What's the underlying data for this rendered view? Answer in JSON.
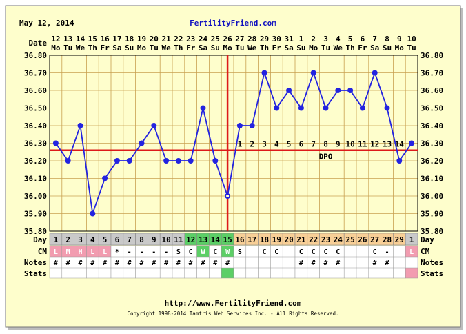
{
  "header": {
    "date": "May 12, 2014",
    "site": "FertilityFriend.com"
  },
  "footer": {
    "url": "http://www.FertilityFriend.com",
    "copyright": "Copyright 1998-2014 Tamtris Web Services Inc. - All Rights Reserved."
  },
  "labels": {
    "date": "Date",
    "day": "Day",
    "cm": "CM",
    "notes": "Notes",
    "stats": "Stats",
    "dpo": "DPO"
  },
  "colors": {
    "background": "#fefecc",
    "grid": "#c8a050",
    "line": "#2323e0",
    "coverline": "#dd1a1a",
    "cell_gray": "#c9c9c9",
    "cell_pink": "#f29cb0",
    "cell_green": "#5ccf66",
    "cell_green_light": "#8fdc8f",
    "cell_orange": "#f8cf96"
  },
  "chart_data": {
    "type": "line",
    "ylim": [
      35.8,
      36.8
    ],
    "yticks": [
      "35.80",
      "35.90",
      "36.00",
      "36.10",
      "36.20",
      "36.30",
      "36.40",
      "36.50",
      "36.60",
      "36.70",
      "36.80"
    ],
    "coverline": 36.26,
    "ovulation_cycle_day": 15,
    "dates": [
      "12",
      "13",
      "14",
      "15",
      "16",
      "17",
      "18",
      "19",
      "20",
      "21",
      "22",
      "23",
      "24",
      "25",
      "26",
      "27",
      "28",
      "29",
      "30",
      "31",
      "1",
      "2",
      "3",
      "4",
      "5",
      "6",
      "7",
      "8",
      "9",
      "10"
    ],
    "weekdays": [
      "Mo",
      "Tu",
      "We",
      "Th",
      "Fr",
      "Sa",
      "Su",
      "Mo",
      "Tu",
      "We",
      "Th",
      "Fr",
      "Sa",
      "Su",
      "Mo",
      "Tu",
      "We",
      "Th",
      "Fr",
      "Sa",
      "Su",
      "Mo",
      "Tu",
      "We",
      "Th",
      "Fr",
      "Sa",
      "Su",
      "Mo",
      "Tu"
    ],
    "cycle_days": [
      "1",
      "2",
      "3",
      "4",
      "5",
      "6",
      "7",
      "8",
      "9",
      "10",
      "11",
      "12",
      "13",
      "14",
      "15",
      "16",
      "17",
      "18",
      "19",
      "20",
      "21",
      "22",
      "23",
      "24",
      "25",
      "26",
      "27",
      "28",
      "29",
      "1"
    ],
    "day_colors": [
      "gray",
      "gray",
      "gray",
      "gray",
      "gray",
      "gray",
      "gray",
      "gray",
      "gray",
      "gray",
      "gray",
      "green",
      "green",
      "green",
      "green",
      "orange",
      "orange",
      "orange",
      "orange",
      "orange",
      "orange",
      "orange",
      "orange",
      "orange",
      "orange",
      "orange",
      "orange",
      "orange",
      "orange",
      "gray"
    ],
    "temps": [
      36.3,
      36.2,
      36.4,
      35.9,
      36.1,
      36.2,
      36.2,
      36.3,
      36.4,
      36.2,
      36.2,
      36.2,
      36.5,
      36.2,
      36.0,
      36.4,
      36.4,
      36.7,
      36.5,
      36.6,
      36.5,
      36.7,
      36.5,
      36.6,
      36.6,
      36.5,
      36.7,
      36.5,
      36.2,
      36.3
    ],
    "dpo": [
      "",
      "",
      "",
      "",
      "",
      "",
      "",
      "",
      "",
      "",
      "",
      "",
      "",
      "",
      "",
      "1",
      "2",
      "3",
      "4",
      "5",
      "6",
      "7",
      "8",
      "9",
      "10",
      "11",
      "12",
      "13",
      "14",
      ""
    ],
    "cm": [
      "L",
      "M",
      "H",
      "L",
      "L",
      "*",
      "-",
      "-",
      "-",
      "-",
      "S",
      "C",
      "W",
      "C",
      "W",
      "S",
      "",
      "C",
      "C",
      "",
      "C",
      "C",
      "C",
      "C",
      "",
      "",
      "C",
      "-",
      "",
      "L"
    ],
    "cm_colors": [
      "pink",
      "pink",
      "pink",
      "pink",
      "pink",
      "none",
      "none",
      "none",
      "none",
      "none",
      "none",
      "none",
      "green",
      "none",
      "green",
      "none",
      "none",
      "none",
      "none",
      "none",
      "none",
      "none",
      "none",
      "none",
      "none",
      "none",
      "none",
      "none",
      "none",
      "pink"
    ],
    "notes": [
      "#",
      "#",
      "#",
      "#",
      "#",
      "#",
      "#",
      "#",
      "#",
      "#",
      "#",
      "#",
      "#",
      "#",
      "#",
      "",
      "",
      "",
      "",
      "",
      "#",
      "#",
      "#",
      "#",
      "",
      "",
      "#",
      "#",
      "",
      ""
    ],
    "stats_colors": [
      "none",
      "none",
      "none",
      "none",
      "none",
      "none",
      "none",
      "none",
      "none",
      "none",
      "none",
      "none",
      "none",
      "none",
      "green",
      "none",
      "none",
      "none",
      "none",
      "none",
      "none",
      "none",
      "none",
      "none",
      "none",
      "none",
      "none",
      "none",
      "none",
      "pink"
    ]
  }
}
